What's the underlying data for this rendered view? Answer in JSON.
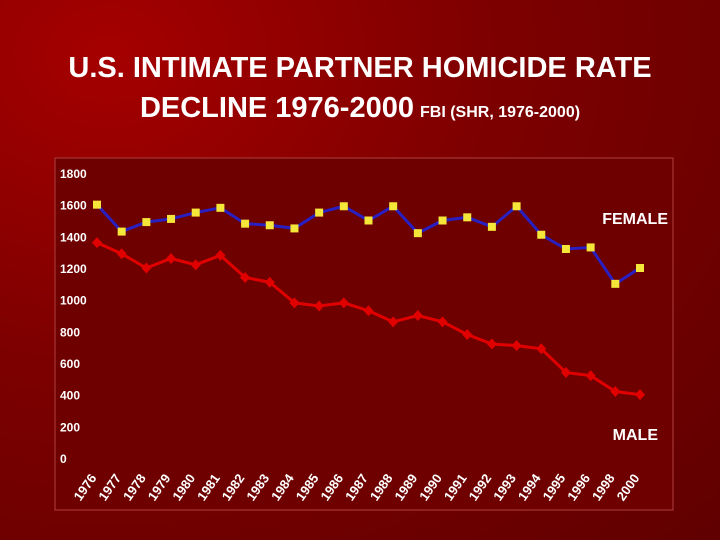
{
  "chart_data": {
    "type": "line",
    "title": "U.S. INTIMATE PARTNER HOMICIDE RATE DECLINE 1976-2000",
    "subtitle": "FBI (SHR, 1976-2000)",
    "categories": [
      "1976",
      "1977",
      "1978",
      "1979",
      "1980",
      "1981",
      "1982",
      "1983",
      "1984",
      "1985",
      "1986",
      "1987",
      "1988",
      "1989",
      "1990",
      "1991",
      "1992",
      "1993",
      "1994",
      "1995",
      "1996",
      "1998",
      "2000"
    ],
    "series": [
      {
        "name": "FEMALE",
        "color": "#2a1fc0",
        "marker": "square",
        "marker_color": "#f5e63a",
        "values": [
          1600,
          1430,
          1490,
          1510,
          1550,
          1580,
          1480,
          1470,
          1450,
          1550,
          1590,
          1500,
          1590,
          1420,
          1500,
          1520,
          1460,
          1590,
          1410,
          1320,
          1330,
          1100,
          1200
        ]
      },
      {
        "name": "MALE",
        "color": "#e00000",
        "marker": "diamond",
        "marker_color": "#e00000",
        "values": [
          1360,
          1290,
          1200,
          1260,
          1220,
          1280,
          1140,
          1110,
          980,
          960,
          980,
          930,
          860,
          900,
          860,
          780,
          720,
          710,
          690,
          540,
          520,
          420,
          400
        ]
      }
    ],
    "ylim": [
      0,
      1800
    ],
    "yticks": [
      0,
      200,
      400,
      600,
      800,
      1000,
      1200,
      1400,
      1600,
      1800
    ],
    "grid": false
  }
}
